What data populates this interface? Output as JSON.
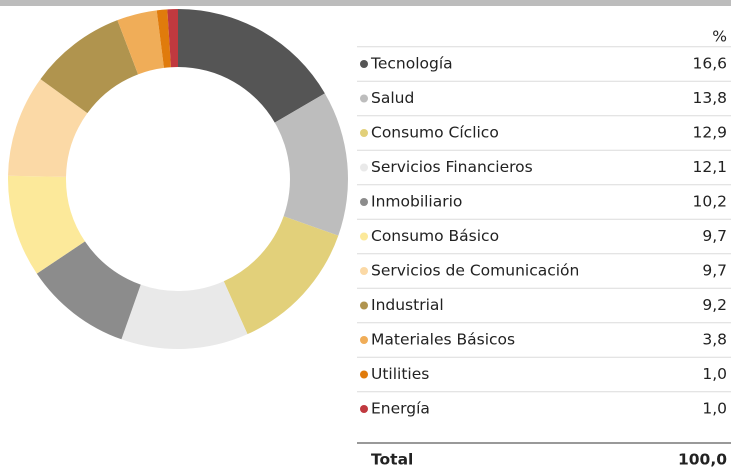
{
  "chart_data": {
    "type": "pie",
    "categories": [
      "Tecnología",
      "Salud",
      "Consumo Cíclico",
      "Servicios Financieros",
      "Inmobiliario",
      "Consumo Básico",
      "Servicios de Comunicación",
      "Industrial",
      "Materiales Básicos",
      "Utilities",
      "Energía"
    ],
    "values": [
      16.6,
      13.8,
      12.9,
      12.1,
      10.2,
      9.7,
      9.7,
      9.2,
      3.8,
      1.0,
      1.0
    ],
    "value_labels": [
      "16,6",
      "13,8",
      "12,9",
      "12,1",
      "10,2",
      "9,7",
      "9,7",
      "9,2",
      "3,8",
      "1,0",
      "1,0"
    ],
    "colors": [
      "#555555",
      "#bdbdbd",
      "#e2d07a",
      "#e9e9e9",
      "#8c8c8c",
      "#fce99a",
      "#fbd9a6",
      "#b0944e",
      "#f0ad58",
      "#e07b0c",
      "#c0393f"
    ],
    "value_header": "%",
    "total": {
      "label": "Total",
      "value": 100.0,
      "value_label": "100,0"
    }
  }
}
